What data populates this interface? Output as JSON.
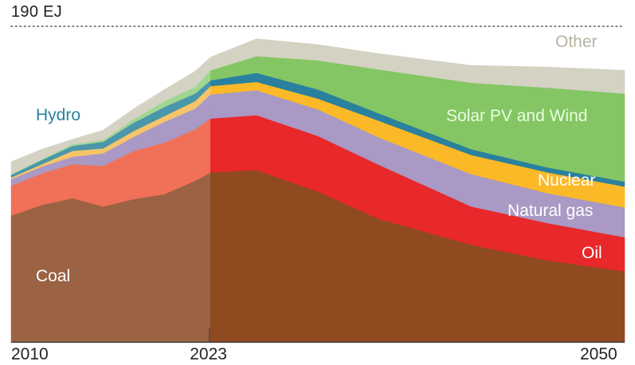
{
  "chart_data": {
    "type": "area",
    "stacked": true,
    "title": "",
    "ylabel": "EJ",
    "ymax_label": "190 EJ",
    "ylim": [
      0,
      190
    ],
    "xlim": [
      2010,
      2050
    ],
    "x_ticks": [
      "2010",
      "2023",
      "2050"
    ],
    "historical_end": 2023,
    "grid": "dotted line at ymax only",
    "x": [
      2010,
      2012,
      2014,
      2016,
      2018,
      2020,
      2022,
      2023,
      2026,
      2030,
      2034,
      2040,
      2045,
      2050
    ],
    "series": [
      {
        "name": "Coal",
        "label": "Coal",
        "color_hist": "#9b6244",
        "color": "#8f4a20",
        "label_color": "#ffffff",
        "values": [
          76,
          82.5,
          86.5,
          81.5,
          86,
          89,
          97,
          102,
          103.5,
          90.5,
          74,
          58.5,
          49,
          42.5
        ]
      },
      {
        "name": "Oil",
        "label": "Oil",
        "color_hist": "#f07158",
        "color": "#e8282b",
        "label_color": "#ffffff",
        "values": [
          18,
          19,
          20.5,
          24.5,
          29,
          31,
          31,
          32.5,
          33,
          33.5,
          32.5,
          23,
          22.5,
          20.5
        ]
      },
      {
        "name": "Natural gas",
        "label": "Natural gas",
        "color_hist": "#a999c4",
        "color": "#a999c4",
        "label_color": "#ffffff",
        "values": [
          4,
          4,
          4.5,
          7.5,
          8.5,
          12.5,
          12.5,
          14.5,
          15,
          16,
          16.5,
          19.5,
          18,
          18
        ]
      },
      {
        "name": "Nuclear",
        "label": "Nuclear",
        "color_hist": "#f6c46a",
        "color": "#fcb927",
        "label_color": "#ffffff",
        "values": [
          1,
          1.5,
          3.5,
          3,
          3.5,
          3.5,
          4.5,
          5,
          5,
          6.5,
          10,
          11.5,
          12.5,
          12.5
        ]
      },
      {
        "name": "Hydro",
        "label": "Hydro",
        "color_hist": "#4a96ab",
        "color": "#2a819e",
        "label_color": "#2a819e",
        "values": [
          1.5,
          2.5,
          3,
          4,
          5,
          5.5,
          4.5,
          3.5,
          5.5,
          5.5,
          4.5,
          3.5,
          3,
          3
        ]
      },
      {
        "name": "Solar PV and Wind",
        "label": "Solar PV and Wind",
        "color_hist": "#9fd690",
        "color": "#84c664",
        "label_color": "#e8ffe0",
        "values": [
          0.5,
          0.5,
          1,
          1,
          2,
          3.5,
          4,
          6,
          10,
          17.5,
          26.5,
          40,
          48,
          53
        ]
      },
      {
        "name": "Other",
        "label": "Other",
        "color_hist": "#d4d2c2",
        "color": "#d4d2c2",
        "label_color": "#b7b3a2",
        "values": [
          7.5,
          6,
          3,
          6,
          6.5,
          7,
          9.5,
          8,
          10.5,
          9.5,
          9.5,
          10.5,
          12.5,
          14
        ]
      }
    ]
  }
}
